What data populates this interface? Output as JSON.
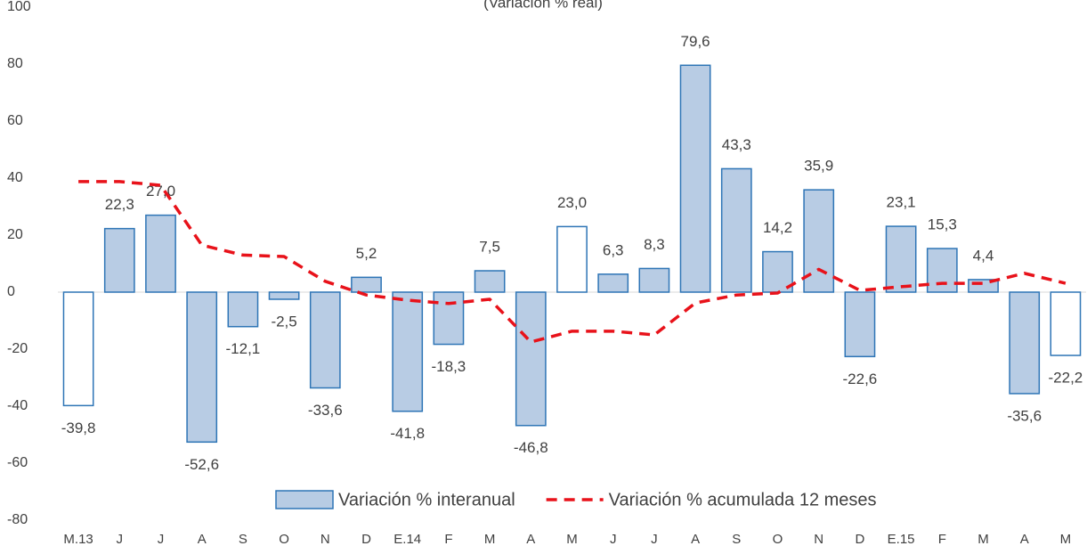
{
  "chart_data": {
    "type": "bar",
    "subtitle": "(Variación % real)",
    "categories": [
      "M.13",
      "J",
      "J",
      "A",
      "S",
      "O",
      "N",
      "D",
      "E.14",
      "F",
      "M",
      "A",
      "M",
      "J",
      "J",
      "A",
      "S",
      "O",
      "N",
      "D",
      "E.15",
      "F",
      "M",
      "A",
      "M"
    ],
    "series": [
      {
        "name": "Variación % interanual",
        "type": "bar",
        "color": "#b8cce4",
        "stroke": "#2e75b6",
        "fills": [
          "#ffffff",
          "#b8cce4",
          "#b8cce4",
          "#b8cce4",
          "#b8cce4",
          "#b8cce4",
          "#b8cce4",
          "#b8cce4",
          "#b8cce4",
          "#b8cce4",
          "#b8cce4",
          "#b8cce4",
          "#ffffff",
          "#b8cce4",
          "#b8cce4",
          "#b8cce4",
          "#b8cce4",
          "#b8cce4",
          "#b8cce4",
          "#b8cce4",
          "#b8cce4",
          "#b8cce4",
          "#b8cce4",
          "#b8cce4",
          "#ffffff"
        ],
        "values": [
          -39.8,
          22.3,
          27.0,
          -52.6,
          -12.1,
          -2.5,
          -33.6,
          5.2,
          -41.8,
          -18.3,
          7.5,
          -46.8,
          23.0,
          6.3,
          8.3,
          79.6,
          43.3,
          14.2,
          35.9,
          -22.6,
          23.1,
          15.3,
          4.4,
          -35.6,
          -22.2
        ],
        "value_labels": [
          "-39,8",
          "22,3",
          "27,0",
          "-52,6",
          "-12,1",
          "-2,5",
          "-33,6",
          "5,2",
          "-41,8",
          "-18,3",
          "7,5",
          "-46,8",
          "23,0",
          "6,3",
          "8,3",
          "79,6",
          "43,3",
          "14,2",
          "35,9",
          "-22,6",
          "23,1",
          "15,3",
          "4,4",
          "-35,6",
          "-22,2"
        ]
      },
      {
        "name": "Variación % acumulada 12 meses",
        "type": "line",
        "color": "#e8121a",
        "dashed": true,
        "values": [
          38.8,
          38.8,
          37.5,
          16.5,
          13,
          12.5,
          3.8,
          -1,
          -2.8,
          -4,
          -2.5,
          -17.5,
          -13.7,
          -13.7,
          -15,
          -3.8,
          -1,
          -0.3,
          8,
          0.6,
          1.9,
          3.1,
          3.1,
          6.6,
          3.1
        ]
      }
    ],
    "ylim": [
      -80,
      100
    ],
    "yticks": [
      -80,
      -60,
      -40,
      -20,
      0,
      20,
      40,
      60,
      80,
      100
    ]
  }
}
